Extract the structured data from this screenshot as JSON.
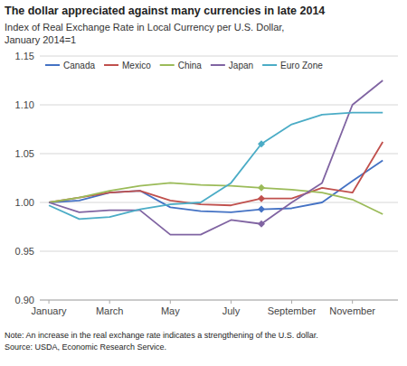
{
  "chart_data": {
    "type": "line",
    "title": "The dollar appreciated against many currencies in late 2014",
    "ylabel": [
      "Index of Real Exchange Rate in Local Currency per U.S. Dollar,",
      "January 2014=1"
    ],
    "annotations": [
      "Note: An increase in the real exchange rate indicates a strengthening of the U.S. dollar.",
      "Source: USDA, Economic Research Service."
    ],
    "categories": [
      "January",
      null,
      "March",
      null,
      "May",
      null,
      "July",
      null,
      "September",
      null,
      "November",
      null
    ],
    "ylim": [
      0.9,
      1.15
    ],
    "yticks": [
      {
        "value": 0.9,
        "label": "0.90"
      },
      0.95,
      {
        "value": 1.0,
        "label": "1.00"
      },
      1.05,
      {
        "value": 1.1,
        "label": "1.10"
      },
      1.15
    ],
    "grid": true,
    "legend": "upper left",
    "series": [
      {
        "name": "Canada",
        "color": "#4472C4",
        "marker": "diamond",
        "marker_positions": [
          7
        ],
        "values": [
          1.0,
          1.002,
          1.01,
          1.012,
          0.995,
          0.991,
          0.99,
          0.993,
          0.994,
          1.0,
          1.022,
          1.043
        ]
      },
      {
        "name": "Mexico",
        "color": "#C0504D",
        "marker": "diamond",
        "marker_positions": [
          7
        ],
        "values": [
          1.0,
          1.005,
          1.01,
          1.012,
          1.002,
          0.998,
          0.997,
          1.004,
          1.004,
          1.015,
          1.01,
          1.062
        ]
      },
      {
        "name": "China",
        "color": "#9BBB59",
        "marker": "diamond",
        "marker_positions": [
          7
        ],
        "values": [
          1.0,
          1.005,
          1.012,
          1.017,
          1.02,
          1.018,
          1.017,
          1.015,
          1.013,
          1.01,
          1.003,
          0.988
        ]
      },
      {
        "name": "Japan",
        "color": "#8064A2",
        "marker": "diamond",
        "marker_positions": [
          7
        ],
        "values": [
          1.0,
          0.99,
          0.992,
          0.992,
          0.967,
          0.967,
          0.982,
          0.978,
          1.0,
          1.02,
          1.1,
          1.125
        ]
      },
      {
        "name": "Euro Zone",
        "color": "#4BACC6",
        "marker": "diamond",
        "marker_positions": [
          7
        ],
        "values": [
          0.997,
          0.983,
          0.985,
          0.993,
          0.998,
          1.0,
          1.02,
          1.06,
          1.08,
          1.09,
          1.092,
          1.092
        ]
      }
    ]
  }
}
